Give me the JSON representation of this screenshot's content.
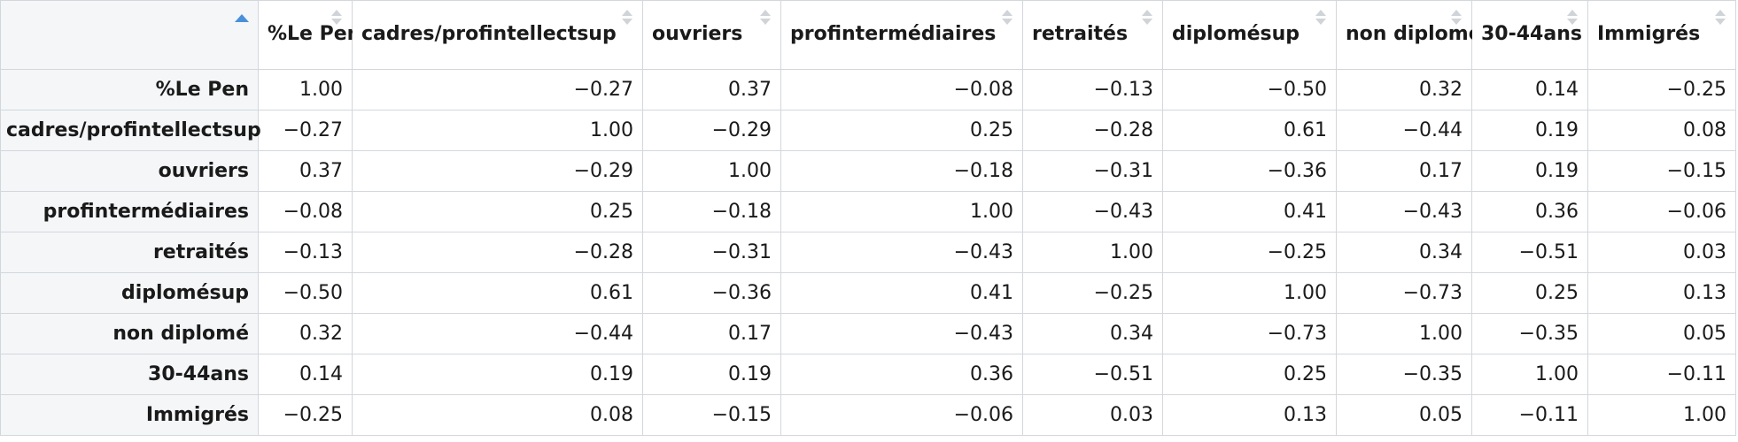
{
  "table": {
    "columns": [
      "%Le Pen",
      "cadres/profintellectsup",
      "ouvriers",
      "profintermédiaires",
      "retraités",
      "diplomésup",
      "non diplomé",
      "30-44ans",
      "Immigrés"
    ],
    "rows": [
      {
        "label": "%Le Pen",
        "values": [
          "1.00",
          "−0.27",
          "0.37",
          "−0.08",
          "−0.13",
          "−0.50",
          "0.32",
          "0.14",
          "−0.25"
        ]
      },
      {
        "label": "cadres/profintellectsup",
        "values": [
          "−0.27",
          "1.00",
          "−0.29",
          "0.25",
          "−0.28",
          "0.61",
          "−0.44",
          "0.19",
          "0.08"
        ]
      },
      {
        "label": "ouvriers",
        "values": [
          "0.37",
          "−0.29",
          "1.00",
          "−0.18",
          "−0.31",
          "−0.36",
          "0.17",
          "0.19",
          "−0.15"
        ]
      },
      {
        "label": "profintermédiaires",
        "values": [
          "−0.08",
          "0.25",
          "−0.18",
          "1.00",
          "−0.43",
          "0.41",
          "−0.43",
          "0.36",
          "−0.06"
        ]
      },
      {
        "label": "retraités",
        "values": [
          "−0.13",
          "−0.28",
          "−0.31",
          "−0.43",
          "1.00",
          "−0.25",
          "0.34",
          "−0.51",
          "0.03"
        ]
      },
      {
        "label": "diplomésup",
        "values": [
          "−0.50",
          "0.61",
          "−0.36",
          "0.41",
          "−0.25",
          "1.00",
          "−0.73",
          "0.25",
          "0.13"
        ]
      },
      {
        "label": "non diplomé",
        "values": [
          "0.32",
          "−0.44",
          "0.17",
          "−0.43",
          "0.34",
          "−0.73",
          "1.00",
          "−0.35",
          "0.05"
        ]
      },
      {
        "label": "30-44ans",
        "values": [
          "0.14",
          "0.19",
          "0.19",
          "0.36",
          "−0.51",
          "0.25",
          "−0.35",
          "1.00",
          "−0.11"
        ]
      },
      {
        "label": "Immigrés",
        "values": [
          "−0.25",
          "0.08",
          "−0.15",
          "−0.06",
          "0.03",
          "0.13",
          "0.05",
          "−0.11",
          "1.00"
        ]
      }
    ]
  },
  "colors": {
    "active_sort": "#4a90d9",
    "inactive_sort": "#d0d4d8",
    "row_header_bg": "#f4f6f8",
    "border": "#d3d7dc"
  },
  "icons": {
    "corner_sort": "sort-ascending-icon",
    "column_sort": "sort-unsorted-icon"
  }
}
